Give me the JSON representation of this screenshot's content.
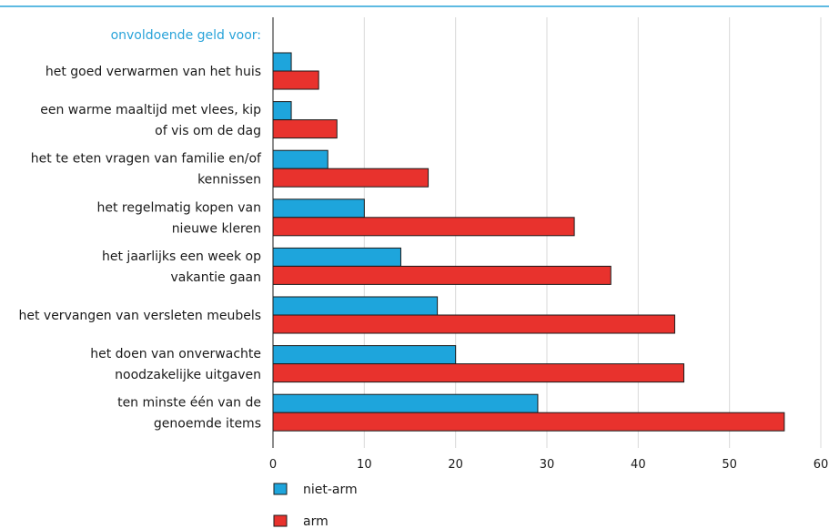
{
  "colors": {
    "niet_arm": "#1ea5dc",
    "arm": "#e8322d",
    "header_line": "#29a3d9",
    "subtitle": "#29a3d9",
    "grid": "#d9d9d9"
  },
  "chart_data": {
    "type": "bar",
    "orientation": "horizontal",
    "subtitle": "onvoldoende geld voor:",
    "categories": [
      [
        "het goed verwarmen van het huis"
      ],
      [
        "een warme maaltijd met vlees, kip",
        "of vis om de dag"
      ],
      [
        "het te eten vragen van familie en/of",
        "kennissen"
      ],
      [
        "het regelmatig kopen van",
        "nieuwe kleren"
      ],
      [
        "het jaarlijks een week op",
        "vakantie gaan"
      ],
      [
        "het vervangen van versleten meubels"
      ],
      [
        "het doen van onverwachte",
        "noodzakelijke uitgaven"
      ],
      [
        "ten minste één van de",
        "genoemde items"
      ]
    ],
    "series": [
      {
        "name": "niet-arm",
        "values": [
          2,
          2,
          6,
          10,
          14,
          18,
          20,
          29
        ]
      },
      {
        "name": "arm",
        "values": [
          5,
          7,
          17,
          33,
          37,
          44,
          45,
          56
        ]
      }
    ],
    "xlim": [
      0,
      60
    ],
    "xticks": [
      0,
      10,
      20,
      30,
      40,
      50,
      60
    ],
    "grid": true,
    "legend_position": "bottom"
  }
}
